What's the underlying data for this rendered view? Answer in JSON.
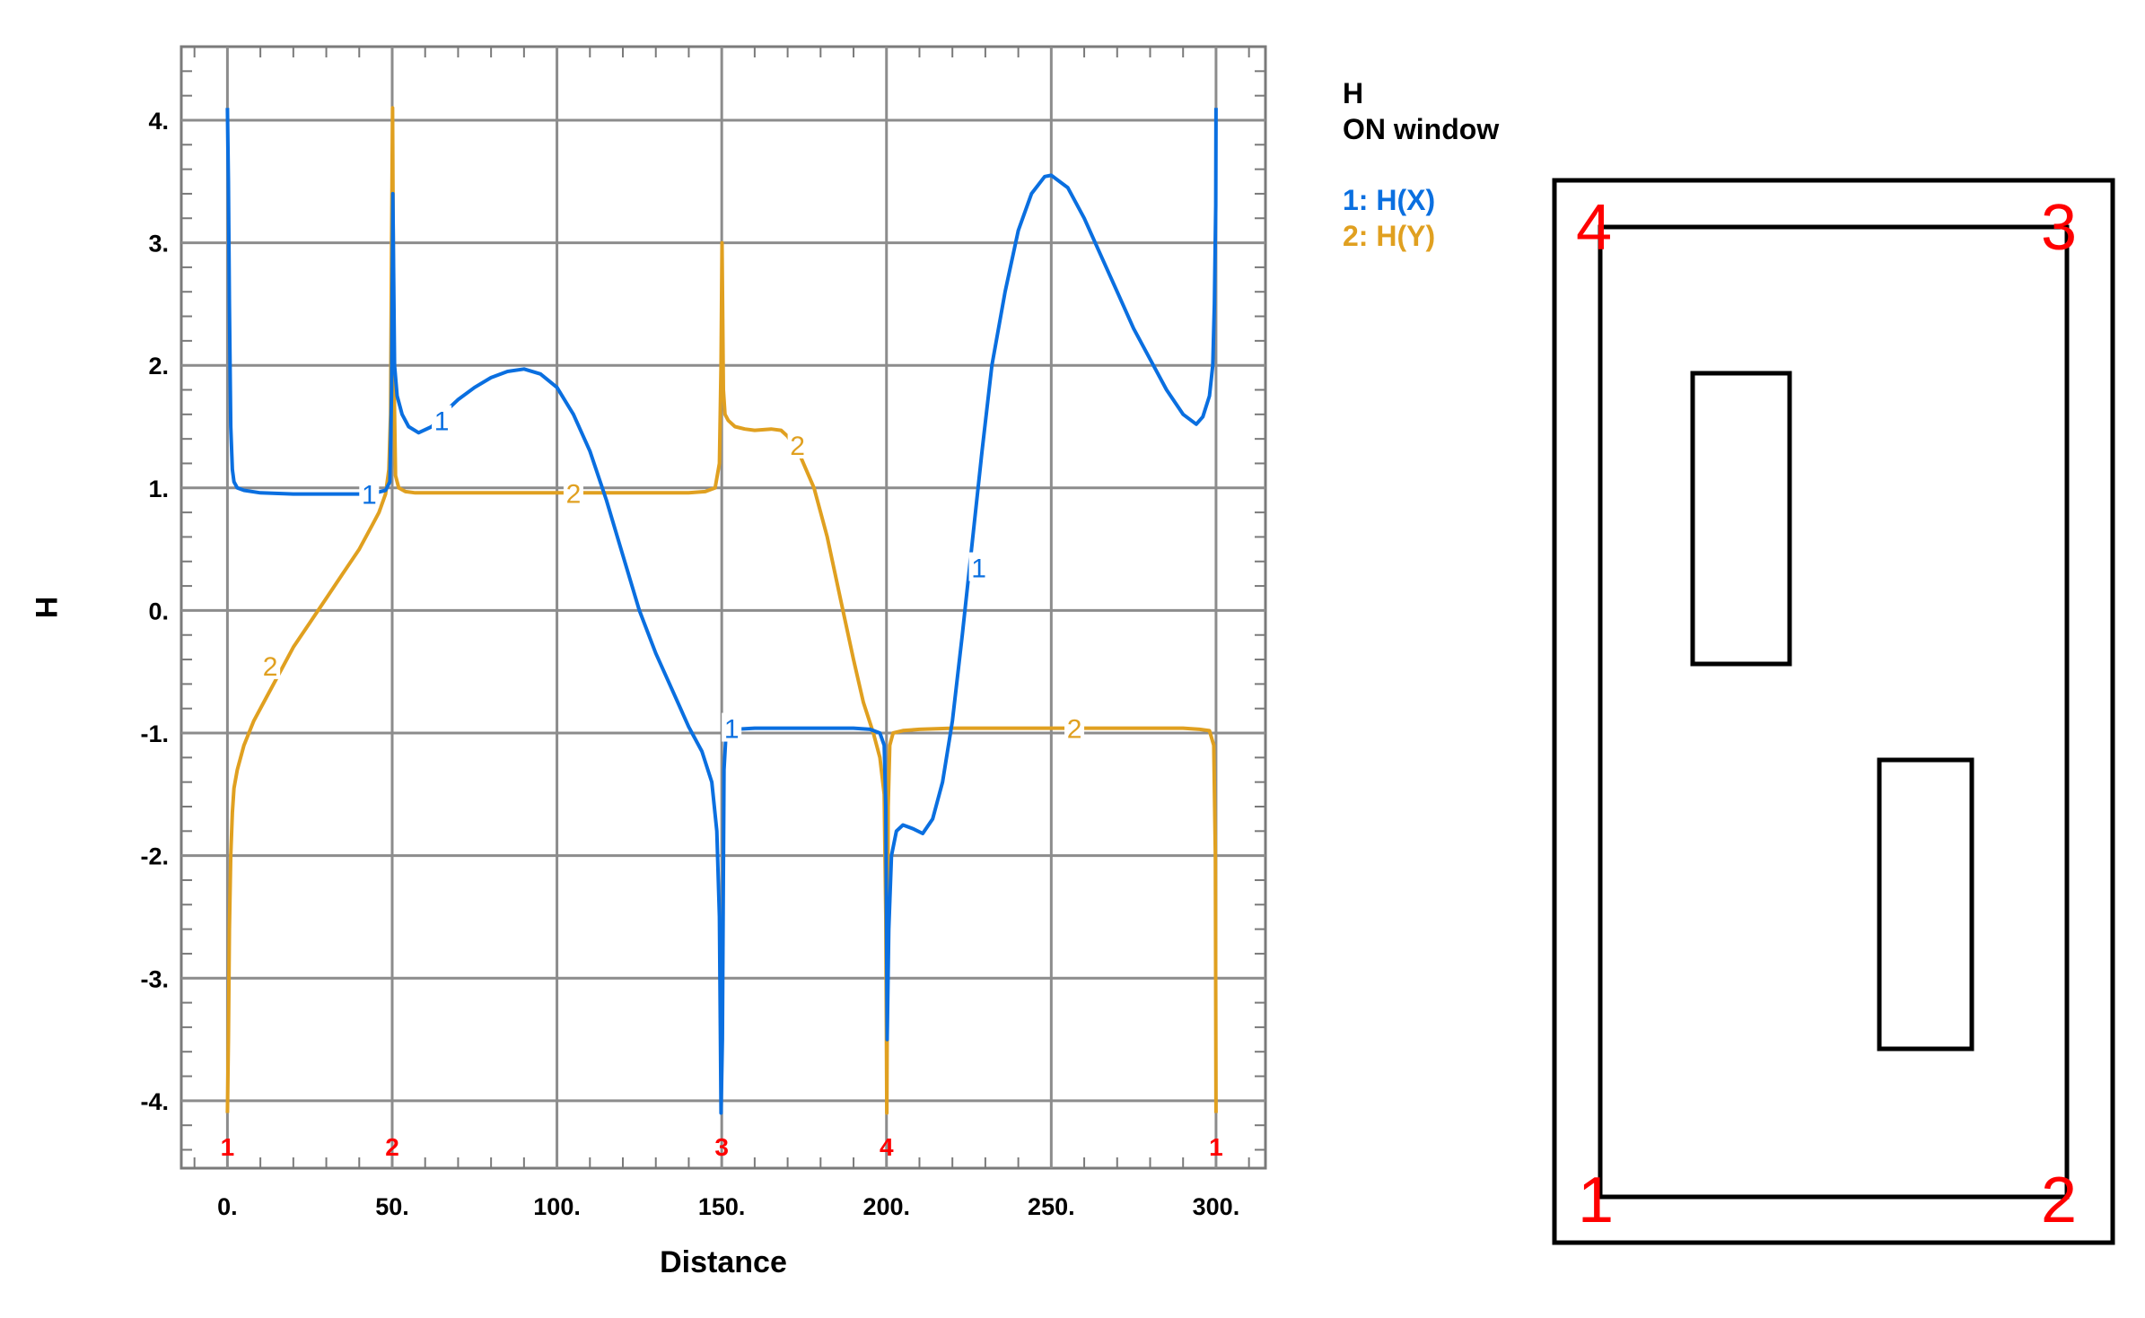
{
  "legend": {
    "title_line1": "H",
    "title_line2": "ON window",
    "entries": [
      {
        "text": "1: H(X)",
        "color": "#0a6fe0"
      },
      {
        "text": "2: H(Y)",
        "color": "#e0a020"
      }
    ]
  },
  "chart_data": {
    "type": "line",
    "xlabel": "Distance",
    "ylabel": "H",
    "xlim": [
      -14,
      315
    ],
    "ylim": [
      -4.55,
      4.6
    ],
    "grid": true,
    "x_ticks": [
      0,
      50,
      100,
      150,
      200,
      250,
      300
    ],
    "x_tick_labels": [
      "0.",
      "50.",
      "100.",
      "150.",
      "200.",
      "250.",
      "300."
    ],
    "y_ticks": [
      4,
      3,
      2,
      1,
      0,
      -1,
      -2,
      -3,
      -4
    ],
    "y_tick_labels": [
      "4.",
      "3.",
      "2.",
      "1.",
      "0.",
      "-1.",
      "-2.",
      "-3.",
      "-4."
    ],
    "node_markers": [
      {
        "x": 0,
        "label": "1"
      },
      {
        "x": 50,
        "label": "2"
      },
      {
        "x": 150,
        "label": "3"
      },
      {
        "x": 200,
        "label": "4"
      },
      {
        "x": 300,
        "label": "1"
      }
    ],
    "series": [
      {
        "name": "H(X)",
        "label": "1",
        "color": "#0a6fe0",
        "x": [
          0,
          0.3,
          0.6,
          1,
          1.5,
          2,
          3,
          5,
          10,
          20,
          30,
          40,
          45,
          48,
          49.3,
          49.8,
          50.2,
          50.7,
          51.5,
          53,
          55,
          58,
          62,
          66,
          70,
          75,
          80,
          85,
          90,
          95,
          100,
          105,
          110,
          115,
          120,
          125,
          130,
          135,
          140,
          144,
          147,
          148.5,
          149.3,
          149.8,
          150.2,
          150.7,
          151.2,
          152,
          154,
          160,
          170,
          180,
          190,
          195,
          198,
          199.3,
          199.8,
          200.2,
          200.7,
          201.5,
          203,
          205,
          208,
          211,
          214,
          217,
          220,
          223,
          226,
          229,
          232,
          236,
          240,
          244,
          248,
          250,
          255,
          260,
          265,
          270,
          275,
          280,
          285,
          290,
          294,
          296,
          298,
          299,
          299.5,
          299.9,
          300
        ],
        "y": [
          4.1,
          3.5,
          2.5,
          1.5,
          1.15,
          1.05,
          1.0,
          0.98,
          0.96,
          0.95,
          0.95,
          0.95,
          0.96,
          0.98,
          1.05,
          1.8,
          3.4,
          2.0,
          1.75,
          1.6,
          1.5,
          1.45,
          1.5,
          1.62,
          1.72,
          1.82,
          1.9,
          1.95,
          1.97,
          1.93,
          1.82,
          1.6,
          1.3,
          0.9,
          0.45,
          0.0,
          -0.35,
          -0.65,
          -0.95,
          -1.15,
          -1.4,
          -1.8,
          -2.5,
          -4.1,
          -3.5,
          -1.3,
          -1.05,
          -0.99,
          -0.97,
          -0.96,
          -0.96,
          -0.96,
          -0.96,
          -0.97,
          -1.0,
          -1.1,
          -1.6,
          -3.5,
          -2.6,
          -2.0,
          -1.8,
          -1.75,
          -1.78,
          -1.82,
          -1.7,
          -1.4,
          -0.9,
          -0.2,
          0.55,
          1.3,
          2.0,
          2.6,
          3.1,
          3.4,
          3.54,
          3.55,
          3.45,
          3.2,
          2.9,
          2.6,
          2.3,
          2.05,
          1.8,
          1.6,
          1.52,
          1.58,
          1.75,
          2.0,
          2.5,
          3.3,
          4.1
        ],
        "labels_at": [
          {
            "x": 43,
            "y": 0.95
          },
          {
            "x": 65,
            "y": 1.55
          },
          {
            "x": 153,
            "y": -0.96
          },
          {
            "x": 228,
            "y": 0.35
          }
        ]
      },
      {
        "name": "H(Y)",
        "label": "2",
        "color": "#e0a020",
        "x": [
          0,
          0.3,
          0.6,
          1,
          1.5,
          2,
          3,
          5,
          8,
          12,
          16,
          20,
          25,
          30,
          35,
          40,
          44,
          46,
          48,
          49,
          49.5,
          49.8,
          50.1,
          50.5,
          51,
          52,
          54,
          57,
          60,
          70,
          80,
          90,
          100,
          110,
          120,
          130,
          140,
          145,
          148,
          149.3,
          149.8,
          150.1,
          150.5,
          151,
          152,
          154,
          157,
          160,
          165,
          168,
          170,
          174,
          178,
          182,
          186,
          190,
          193,
          196,
          198,
          199.3,
          199.8,
          200.1,
          200.5,
          201,
          202,
          205,
          210,
          220,
          230,
          240,
          250,
          260,
          270,
          280,
          290,
          295,
          298,
          299.3,
          299.8,
          300
        ],
        "y": [
          -4.1,
          -3.5,
          -2.6,
          -2.0,
          -1.65,
          -1.45,
          -1.3,
          -1.1,
          -0.9,
          -0.7,
          -0.5,
          -0.3,
          -0.1,
          0.1,
          0.3,
          0.5,
          0.7,
          0.8,
          0.95,
          1.15,
          1.6,
          3.0,
          4.1,
          2.0,
          1.1,
          1.0,
          0.97,
          0.96,
          0.96,
          0.96,
          0.96,
          0.96,
          0.96,
          0.96,
          0.96,
          0.96,
          0.96,
          0.97,
          1.0,
          1.2,
          2.0,
          3.0,
          1.8,
          1.6,
          1.55,
          1.5,
          1.48,
          1.47,
          1.48,
          1.47,
          1.42,
          1.25,
          1.0,
          0.6,
          0.1,
          -0.4,
          -0.75,
          -1.0,
          -1.2,
          -1.5,
          -2.5,
          -4.1,
          -1.6,
          -1.1,
          -1.0,
          -0.98,
          -0.97,
          -0.96,
          -0.96,
          -0.96,
          -0.96,
          -0.96,
          -0.96,
          -0.96,
          -0.96,
          -0.97,
          -0.98,
          -1.1,
          -2.0,
          -4.1
        ],
        "labels_at": [
          {
            "x": 13,
            "y": -0.45
          },
          {
            "x": 105,
            "y": 0.96
          },
          {
            "x": 173,
            "y": 1.35
          },
          {
            "x": 257,
            "y": -0.96
          }
        ]
      }
    ]
  },
  "diagram": {
    "corner_labels": [
      {
        "text": "1",
        "color": "#ff44aa"
      },
      {
        "text": "2",
        "color": "#ff0000"
      },
      {
        "text": "3",
        "color": "#ff0000"
      },
      {
        "text": "4",
        "color": "#ff0000"
      }
    ]
  }
}
